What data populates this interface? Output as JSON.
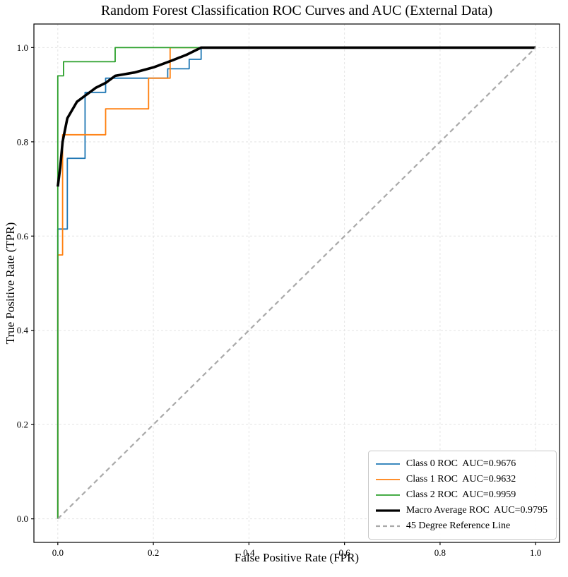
{
  "chart_data": {
    "type": "line",
    "title": "Random Forest Classification ROC Curves and AUC (External Data)",
    "xlabel": "False Positive Rate (FPR)",
    "ylabel": "True Positive Rate (TPR)",
    "xlim": [
      -0.05,
      1.05
    ],
    "ylim": [
      -0.05,
      1.05
    ],
    "xticks": [
      0.0,
      0.2,
      0.4,
      0.6,
      0.8,
      1.0
    ],
    "yticks": [
      0.0,
      0.2,
      0.4,
      0.6,
      0.8,
      1.0
    ],
    "grid": true,
    "legend_position": "lower right",
    "series": [
      {
        "name": "Class 0 ROC  AUC=0.9676",
        "auc": 0.9676,
        "color": "#1f77b4",
        "width": 1.8,
        "dash": null,
        "points": [
          [
            0,
            0
          ],
          [
            0,
            0.615
          ],
          [
            0.02,
            0.615
          ],
          [
            0.02,
            0.765
          ],
          [
            0.057,
            0.765
          ],
          [
            0.057,
            0.905
          ],
          [
            0.1,
            0.905
          ],
          [
            0.1,
            0.935
          ],
          [
            0.23,
            0.935
          ],
          [
            0.23,
            0.955
          ],
          [
            0.275,
            0.955
          ],
          [
            0.275,
            0.975
          ],
          [
            0.3,
            0.975
          ],
          [
            0.3,
            1.0
          ],
          [
            1,
            1
          ]
        ]
      },
      {
        "name": "Class 1 ROC  AUC=0.9632",
        "auc": 0.9632,
        "color": "#ff7f0e",
        "width": 1.8,
        "dash": null,
        "points": [
          [
            0,
            0
          ],
          [
            0,
            0.56
          ],
          [
            0.01,
            0.56
          ],
          [
            0.01,
            0.815
          ],
          [
            0.1,
            0.815
          ],
          [
            0.1,
            0.87
          ],
          [
            0.19,
            0.87
          ],
          [
            0.19,
            0.935
          ],
          [
            0.235,
            0.935
          ],
          [
            0.235,
            1.0
          ],
          [
            1,
            1
          ]
        ]
      },
      {
        "name": "Class 2 ROC  AUC=0.9959",
        "auc": 0.9959,
        "color": "#2ca02c",
        "width": 1.8,
        "dash": null,
        "points": [
          [
            0,
            0
          ],
          [
            0,
            0.94
          ],
          [
            0.012,
            0.94
          ],
          [
            0.012,
            0.97
          ],
          [
            0.12,
            0.97
          ],
          [
            0.12,
            1.0
          ],
          [
            1,
            1
          ]
        ]
      },
      {
        "name": "Macro Average ROC  AUC=0.9795",
        "auc": 0.9795,
        "color": "#000000",
        "width": 3.6,
        "dash": null,
        "points": [
          [
            0,
            0.705
          ],
          [
            0.005,
            0.745
          ],
          [
            0.01,
            0.8
          ],
          [
            0.02,
            0.85
          ],
          [
            0.04,
            0.885
          ],
          [
            0.06,
            0.9
          ],
          [
            0.08,
            0.915
          ],
          [
            0.1,
            0.925
          ],
          [
            0.12,
            0.94
          ],
          [
            0.16,
            0.947
          ],
          [
            0.2,
            0.958
          ],
          [
            0.24,
            0.973
          ],
          [
            0.27,
            0.985
          ],
          [
            0.3,
            1.0
          ],
          [
            1,
            1
          ]
        ]
      },
      {
        "name": "45 Degree Reference Line",
        "color": "#a9a9a9",
        "width": 2.2,
        "dash": "7 5",
        "points": [
          [
            0,
            0
          ],
          [
            1,
            1
          ]
        ]
      }
    ]
  }
}
